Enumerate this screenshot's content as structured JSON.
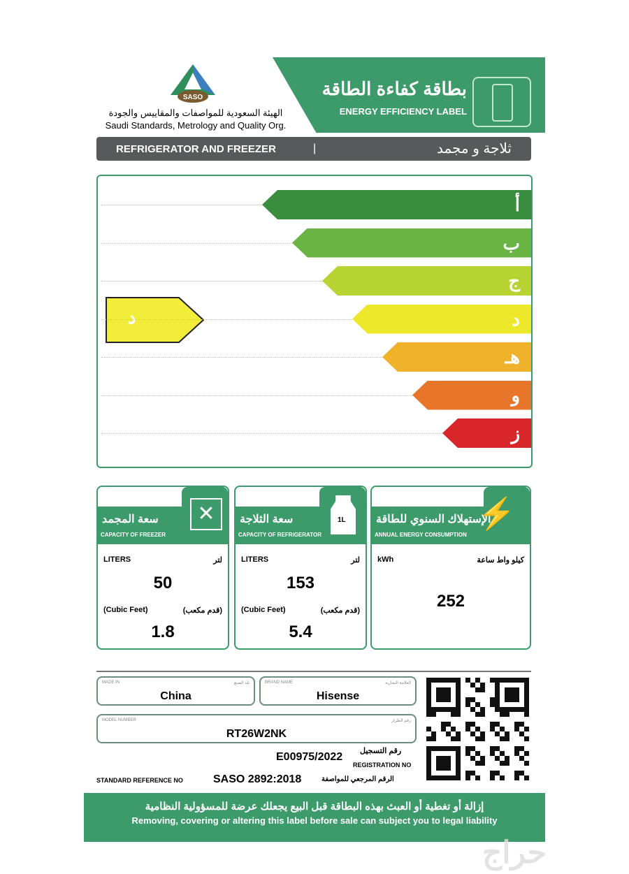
{
  "org": {
    "logo_text": "SASO",
    "name_ar": "الهيئة السعودية للمواصفات والمقاييس والجودة",
    "name_en": "Saudi Standards, Metrology and Quality Org."
  },
  "header": {
    "title_ar": "بطاقة كفاءة الطاقة",
    "title_en": "ENERGY EFFICIENCY LABEL",
    "icon": "refrigerator-icon"
  },
  "category": {
    "en": "REFRIGERATOR AND FREEZER",
    "sep": "|",
    "ar": "ثلاجة و مجمد"
  },
  "scale": {
    "classes": [
      {
        "label": "أ",
        "color": "#3a8d3e"
      },
      {
        "label": "ب",
        "color": "#6ab446"
      },
      {
        "label": "ج",
        "color": "#b7d433"
      },
      {
        "label": "د",
        "color": "#eee82b"
      },
      {
        "label": "هـ",
        "color": "#f0b12b"
      },
      {
        "label": "و",
        "color": "#e8762a"
      },
      {
        "label": "ز",
        "color": "#d9262a"
      }
    ],
    "rating": "د",
    "rating_color": "#f2ec3a"
  },
  "boxes": {
    "freezer": {
      "title_ar": "سعة المجمد",
      "title_en": "CAPACITY OF FREEZER",
      "liters_en": "LITERS",
      "liters_ar": "لتر",
      "liters": "50",
      "cf_en": "(Cubic Feet)",
      "cf_ar": "(قدم مكعب)",
      "cf": "1.8",
      "icon": "expand-arrows-icon"
    },
    "fridge": {
      "title_ar": "سعة الثلاجة",
      "title_en": "CAPACITY OF REFRIGERATOR",
      "liters_en": "LITERS",
      "liters_ar": "لتر",
      "liters": "153",
      "cf_en": "(Cubic Feet)",
      "cf_ar": "(قدم مكعب)",
      "cf": "5.4",
      "icon": "milk-carton-icon",
      "icon_text": "1L"
    },
    "energy": {
      "title_ar": "الإستهلاك السنوي للطاقة",
      "title_en": "ANNUAL ENERGY CONSUMPTION",
      "unit_en": "kWh",
      "unit_ar": "كيلو واط ساعة",
      "value": "252",
      "icon": "lightning-icon"
    }
  },
  "info": {
    "made_in": {
      "label_en": "MADE IN",
      "label_ar": "بلد الصنع",
      "value": "China"
    },
    "brand": {
      "label_en": "BRAND NAME",
      "label_ar": "العلامة التجارية",
      "value": "Hisense"
    },
    "model": {
      "label_en": "MODEL NUMBER",
      "label_ar": "رقم الطراز",
      "value": "RT26W2NK"
    },
    "registration": {
      "label_ar": "رقم التسجيل",
      "label_en": "REGISTRATION NO",
      "value": "E00975/2022"
    },
    "standard": {
      "label_en": "STANDARD REFERENCE NO",
      "label_ar": "الرقم المرجعي للمواصفة",
      "value": "SASO 2892:2018"
    }
  },
  "footer": {
    "ar": "إزالة أو تغطية أو العبث بهذه البطاقة قبل البيع يجعلك عرضة للمسؤولية النظامية",
    "en": "Removing, covering or altering this label before sale can subject you to legal liability"
  },
  "watermark": "حراج"
}
